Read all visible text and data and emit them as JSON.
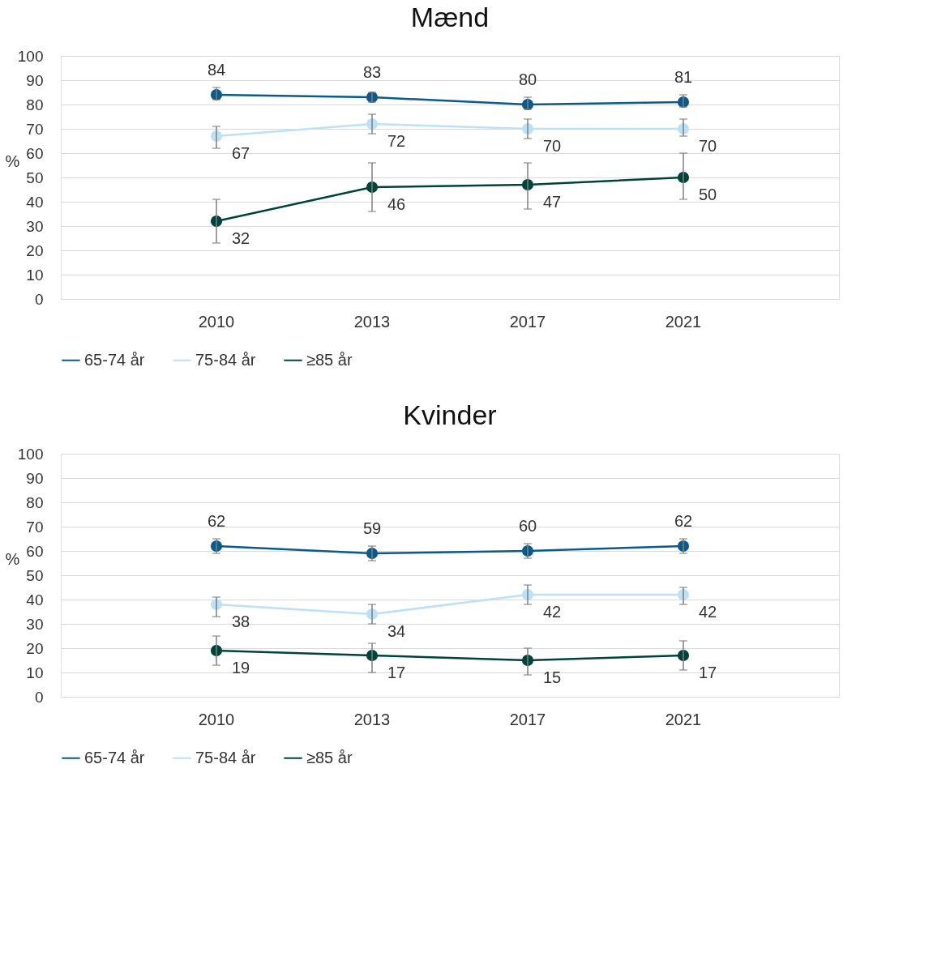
{
  "chart_data": [
    {
      "type": "line",
      "title": "Mænd",
      "ylabel": "%",
      "categories": [
        "2010",
        "2013",
        "2017",
        "2021"
      ],
      "ylim": [
        0,
        100
      ],
      "yticks": [
        0,
        10,
        20,
        30,
        40,
        50,
        60,
        70,
        80,
        90,
        100
      ],
      "grid": "y",
      "legend": "bottom",
      "marker": "circle",
      "data_labels": true,
      "series": [
        {
          "name": "65-74 år",
          "color": "#0b5a8a",
          "values": [
            84,
            83,
            80,
            81
          ],
          "errors": [
            [
              82,
              87
            ],
            [
              81,
              85
            ],
            [
              78,
              83
            ],
            [
              79,
              84
            ]
          ]
        },
        {
          "name": "75-84 år",
          "color": "#bde0f7",
          "values": [
            67,
            72,
            70,
            70
          ],
          "errors": [
            [
              62,
              71
            ],
            [
              68,
              76
            ],
            [
              66,
              74
            ],
            [
              67,
              74
            ]
          ]
        },
        {
          "name": "≥85 år",
          "color": "#00433a",
          "values": [
            32,
            46,
            47,
            50
          ],
          "errors": [
            [
              23,
              41
            ],
            [
              36,
              56
            ],
            [
              37,
              56
            ],
            [
              41,
              60
            ]
          ]
        }
      ]
    },
    {
      "type": "line",
      "title": "Kvinder",
      "ylabel": "%",
      "categories": [
        "2010",
        "2013",
        "2017",
        "2021"
      ],
      "ylim": [
        0,
        100
      ],
      "yticks": [
        0,
        10,
        20,
        30,
        40,
        50,
        60,
        70,
        80,
        90,
        100
      ],
      "grid": "y",
      "legend": "bottom",
      "marker": "circle",
      "data_labels": true,
      "series": [
        {
          "name": "65-74 år",
          "color": "#0b5a8a",
          "values": [
            62,
            59,
            60,
            62
          ],
          "errors": [
            [
              59,
              65
            ],
            [
              56,
              62
            ],
            [
              57,
              63
            ],
            [
              59,
              65
            ]
          ]
        },
        {
          "name": "75-84 år",
          "color": "#bde0f7",
          "values": [
            38,
            34,
            42,
            42
          ],
          "errors": [
            [
              33,
              41
            ],
            [
              30,
              38
            ],
            [
              38,
              46
            ],
            [
              38,
              45
            ]
          ]
        },
        {
          "name": "≥85 år",
          "color": "#00433a",
          "values": [
            19,
            17,
            15,
            17
          ],
          "errors": [
            [
              13,
              25
            ],
            [
              10,
              22
            ],
            [
              9,
              20
            ],
            [
              11,
              23
            ]
          ]
        }
      ]
    }
  ]
}
